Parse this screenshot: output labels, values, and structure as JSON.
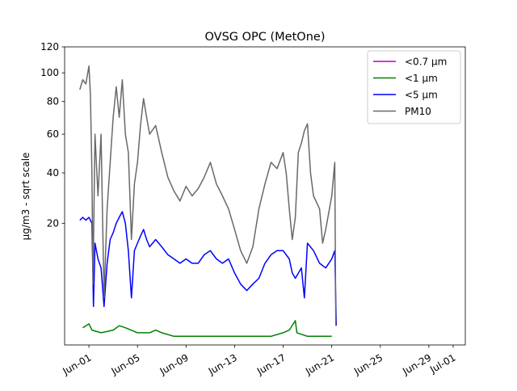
{
  "chart_data": {
    "type": "line",
    "title": "OVSG OPC (MetOne)",
    "xlabel": "",
    "ylabel": "µg/m3 - sqrt scale",
    "y_scale": "sqrt",
    "ylim": [
      0,
      120
    ],
    "yticks": [
      20,
      40,
      60,
      80,
      100,
      120
    ],
    "xlim": [
      "2019-05-30",
      "2019-07-02"
    ],
    "xticks": [
      {
        "date": "2019-06-01",
        "label": "Jun-01"
      },
      {
        "date": "2019-06-05",
        "label": "Jun-05"
      },
      {
        "date": "2019-06-09",
        "label": "Jun-09"
      },
      {
        "date": "2019-06-13",
        "label": "Jun-13"
      },
      {
        "date": "2019-06-17",
        "label": "Jun-17"
      },
      {
        "date": "2019-06-21",
        "label": "Jun-21"
      },
      {
        "date": "2019-06-25",
        "label": "Jun-25"
      },
      {
        "date": "2019-06-29",
        "label": "Jun-29"
      },
      {
        "date": "2019-07-01",
        "label": "Jul-01"
      }
    ],
    "x_tick_rotation": 30,
    "grid": false,
    "legend_position": "top-right",
    "series": [
      {
        "name": "<0.7 µm",
        "color": "#bf00bf",
        "points": []
      },
      {
        "name": "<1 µm",
        "color": "#008000",
        "points": [
          [
            "2019-05-31T12:00",
            0.4
          ],
          [
            "2019-06-01T00:00",
            0.6
          ],
          [
            "2019-06-01T06:00",
            0.3
          ],
          [
            "2019-06-02T00:00",
            0.2
          ],
          [
            "2019-06-03T00:00",
            0.3
          ],
          [
            "2019-06-03T12:00",
            0.5
          ],
          [
            "2019-06-04T00:00",
            0.4
          ],
          [
            "2019-06-05T00:00",
            0.2
          ],
          [
            "2019-06-06T00:00",
            0.2
          ],
          [
            "2019-06-06T12:00",
            0.3
          ],
          [
            "2019-06-07T00:00",
            0.2
          ],
          [
            "2019-06-08T00:00",
            0.1
          ],
          [
            "2019-06-10T00:00",
            0.1
          ],
          [
            "2019-06-13T00:00",
            0.1
          ],
          [
            "2019-06-16T00:00",
            0.1
          ],
          [
            "2019-06-17T00:00",
            0.2
          ],
          [
            "2019-06-17T12:00",
            0.3
          ],
          [
            "2019-06-18T00:00",
            0.8
          ],
          [
            "2019-06-18T03:00",
            0.2
          ],
          [
            "2019-06-19T00:00",
            0.1
          ],
          [
            "2019-06-21T00:00",
            0.1
          ]
        ]
      },
      {
        "name": "<5 µm",
        "color": "#0000ff",
        "points": [
          [
            "2019-05-31T06:00",
            21
          ],
          [
            "2019-05-31T12:00",
            22
          ],
          [
            "2019-05-31T18:00",
            21
          ],
          [
            "2019-06-01T00:00",
            22
          ],
          [
            "2019-06-01T06:00",
            20
          ],
          [
            "2019-06-01T09:00",
            2
          ],
          [
            "2019-06-01T12:00",
            14
          ],
          [
            "2019-06-01T18:00",
            10
          ],
          [
            "2019-06-02T00:00",
            8
          ],
          [
            "2019-06-02T06:00",
            2
          ],
          [
            "2019-06-02T12:00",
            9
          ],
          [
            "2019-06-02T18:00",
            15
          ],
          [
            "2019-06-03T00:00",
            17
          ],
          [
            "2019-06-03T06:00",
            20
          ],
          [
            "2019-06-03T12:00",
            22
          ],
          [
            "2019-06-03T18:00",
            24
          ],
          [
            "2019-06-04T00:00",
            20
          ],
          [
            "2019-06-04T06:00",
            12
          ],
          [
            "2019-06-04T12:00",
            3
          ],
          [
            "2019-06-04T18:00",
            12
          ],
          [
            "2019-06-05T00:00",
            14
          ],
          [
            "2019-06-05T06:00",
            16
          ],
          [
            "2019-06-05T12:00",
            18
          ],
          [
            "2019-06-05T18:00",
            15
          ],
          [
            "2019-06-06T00:00",
            13
          ],
          [
            "2019-06-06T12:00",
            15
          ],
          [
            "2019-06-07T00:00",
            13
          ],
          [
            "2019-06-07T12:00",
            11
          ],
          [
            "2019-06-08T00:00",
            10
          ],
          [
            "2019-06-08T12:00",
            9
          ],
          [
            "2019-06-09T00:00",
            10
          ],
          [
            "2019-06-09T12:00",
            9
          ],
          [
            "2019-06-10T00:00",
            9
          ],
          [
            "2019-06-10T12:00",
            11
          ],
          [
            "2019-06-11T00:00",
            12
          ],
          [
            "2019-06-11T12:00",
            10
          ],
          [
            "2019-06-12T00:00",
            9
          ],
          [
            "2019-06-12T12:00",
            10
          ],
          [
            "2019-06-13T00:00",
            7
          ],
          [
            "2019-06-13T12:00",
            5
          ],
          [
            "2019-06-14T00:00",
            4
          ],
          [
            "2019-06-14T12:00",
            5
          ],
          [
            "2019-06-15T00:00",
            6
          ],
          [
            "2019-06-15T12:00",
            9
          ],
          [
            "2019-06-16T00:00",
            11
          ],
          [
            "2019-06-16T12:00",
            12
          ],
          [
            "2019-06-17T00:00",
            12
          ],
          [
            "2019-06-17T12:00",
            10
          ],
          [
            "2019-06-17T18:00",
            7
          ],
          [
            "2019-06-18T00:00",
            6
          ],
          [
            "2019-06-18T12:00",
            8
          ],
          [
            "2019-06-18T18:00",
            3
          ],
          [
            "2019-06-19T00:00",
            14
          ],
          [
            "2019-06-19T12:00",
            12
          ],
          [
            "2019-06-20T00:00",
            9
          ],
          [
            "2019-06-20T12:00",
            8
          ],
          [
            "2019-06-21T00:00",
            10
          ],
          [
            "2019-06-21T06:00",
            12
          ],
          [
            "2019-06-21T09:00",
            0.5
          ]
        ]
      },
      {
        "name": "PM10",
        "color": "#696969",
        "points": [
          [
            "2019-05-31T06:00",
            88
          ],
          [
            "2019-05-31T12:00",
            95
          ],
          [
            "2019-05-31T18:00",
            92
          ],
          [
            "2019-06-01T00:00",
            105
          ],
          [
            "2019-06-01T03:00",
            85
          ],
          [
            "2019-06-01T06:00",
            40
          ],
          [
            "2019-06-01T08:00",
            5
          ],
          [
            "2019-06-01T12:00",
            60
          ],
          [
            "2019-06-01T18:00",
            30
          ],
          [
            "2019-06-02T00:00",
            60
          ],
          [
            "2019-06-02T06:00",
            3
          ],
          [
            "2019-06-02T12:00",
            25
          ],
          [
            "2019-06-02T18:00",
            45
          ],
          [
            "2019-06-03T00:00",
            70
          ],
          [
            "2019-06-03T06:00",
            90
          ],
          [
            "2019-06-03T12:00",
            70
          ],
          [
            "2019-06-03T18:00",
            95
          ],
          [
            "2019-06-04T00:00",
            60
          ],
          [
            "2019-06-04T06:00",
            50
          ],
          [
            "2019-06-04T12:00",
            15
          ],
          [
            "2019-06-04T18:00",
            35
          ],
          [
            "2019-06-05T00:00",
            45
          ],
          [
            "2019-06-05T06:00",
            65
          ],
          [
            "2019-06-05T12:00",
            82
          ],
          [
            "2019-06-05T18:00",
            70
          ],
          [
            "2019-06-06T00:00",
            60
          ],
          [
            "2019-06-06T12:00",
            65
          ],
          [
            "2019-06-07T00:00",
            50
          ],
          [
            "2019-06-07T12:00",
            38
          ],
          [
            "2019-06-08T00:00",
            32
          ],
          [
            "2019-06-08T12:00",
            28
          ],
          [
            "2019-06-09T00:00",
            34
          ],
          [
            "2019-06-09T12:00",
            30
          ],
          [
            "2019-06-10T00:00",
            33
          ],
          [
            "2019-06-10T12:00",
            38
          ],
          [
            "2019-06-11T00:00",
            45
          ],
          [
            "2019-06-11T12:00",
            35
          ],
          [
            "2019-06-12T00:00",
            30
          ],
          [
            "2019-06-12T12:00",
            25
          ],
          [
            "2019-06-13T00:00",
            18
          ],
          [
            "2019-06-13T12:00",
            12
          ],
          [
            "2019-06-14T00:00",
            9
          ],
          [
            "2019-06-14T12:00",
            13
          ],
          [
            "2019-06-15T00:00",
            25
          ],
          [
            "2019-06-15T12:00",
            35
          ],
          [
            "2019-06-16T00:00",
            45
          ],
          [
            "2019-06-16T12:00",
            42
          ],
          [
            "2019-06-17T00:00",
            50
          ],
          [
            "2019-06-17T06:00",
            40
          ],
          [
            "2019-06-17T12:00",
            25
          ],
          [
            "2019-06-17T18:00",
            15
          ],
          [
            "2019-06-18T00:00",
            22
          ],
          [
            "2019-06-18T06:00",
            50
          ],
          [
            "2019-06-18T12:00",
            55
          ],
          [
            "2019-06-18T18:00",
            62
          ],
          [
            "2019-06-19T00:00",
            66
          ],
          [
            "2019-06-19T06:00",
            40
          ],
          [
            "2019-06-19T12:00",
            30
          ],
          [
            "2019-06-20T00:00",
            25
          ],
          [
            "2019-06-20T06:00",
            14
          ],
          [
            "2019-06-20T12:00",
            18
          ],
          [
            "2019-06-21T00:00",
            30
          ],
          [
            "2019-06-21T06:00",
            45
          ],
          [
            "2019-06-21T08:00",
            0.5
          ]
        ]
      }
    ]
  }
}
